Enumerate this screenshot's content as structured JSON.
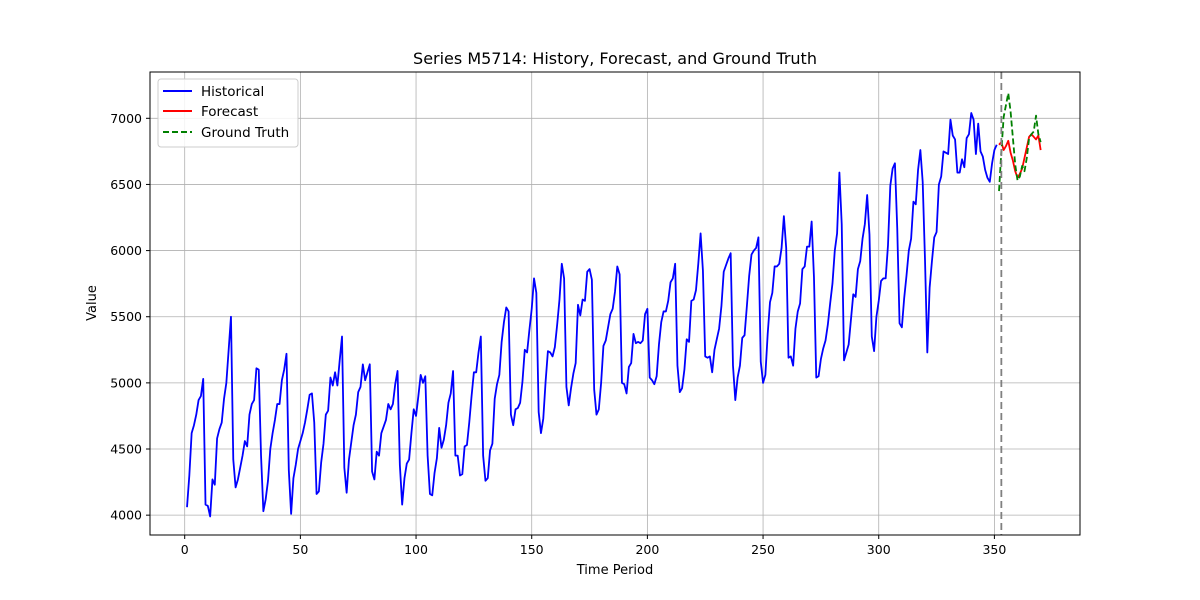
{
  "chart_data": {
    "type": "line",
    "title": "Series M5714: History, Forecast, and Ground Truth",
    "xlabel": "Time Period",
    "ylabel": "Value",
    "xlim": [
      -15,
      387
    ],
    "ylim": [
      3850,
      7350
    ],
    "xticks": [
      0,
      50,
      100,
      150,
      200,
      250,
      300,
      350
    ],
    "yticks": [
      4000,
      4500,
      5000,
      5500,
      6000,
      6500,
      7000
    ],
    "grid": true,
    "legend_position": "top-left",
    "forecast_start_marker": 353,
    "colors": {
      "historical": "#0000ff",
      "forecast": "#ff0000",
      "ground_truth": "#008000",
      "marker": "#808080",
      "grid": "#b0b0b0"
    },
    "series": [
      {
        "name": "Historical",
        "style": "solid",
        "color": "#0000ff",
        "x_start": 1,
        "values": [
          4060,
          4300,
          4620,
          4680,
          4760,
          4870,
          4900,
          5030,
          4080,
          4070,
          3990,
          4270,
          4230,
          4580,
          4650,
          4700,
          4880,
          5000,
          5250,
          5500,
          4420,
          4210,
          4270,
          4360,
          4450,
          4560,
          4520,
          4760,
          4840,
          4870,
          5110,
          5100,
          4450,
          4030,
          4120,
          4260,
          4500,
          4620,
          4720,
          4840,
          4840,
          5020,
          5100,
          5220,
          4340,
          4010,
          4280,
          4380,
          4500,
          4560,
          4620,
          4700,
          4800,
          4910,
          4920,
          4700,
          4160,
          4180,
          4400,
          4540,
          4760,
          4790,
          5040,
          4980,
          5080,
          4980,
          5170,
          5350,
          4360,
          4170,
          4420,
          4550,
          4680,
          4760,
          4930,
          4970,
          5140,
          5020,
          5080,
          5140,
          4330,
          4270,
          4480,
          4450,
          4620,
          4670,
          4720,
          4840,
          4800,
          4840,
          4990,
          5090,
          4380,
          4080,
          4280,
          4390,
          4420,
          4620,
          4800,
          4750,
          4900,
          5060,
          5000,
          5050,
          4450,
          4160,
          4150,
          4320,
          4430,
          4660,
          4510,
          4570,
          4680,
          4850,
          4920,
          5090,
          4450,
          4450,
          4300,
          4310,
          4520,
          4530,
          4700,
          4900,
          5080,
          5080,
          5230,
          5350,
          4450,
          4260,
          4280,
          4490,
          4540,
          4880,
          4990,
          5060,
          5310,
          5460,
          5570,
          5540,
          4760,
          4680,
          4800,
          4810,
          4850,
          5010,
          5250,
          5230,
          5400,
          5560,
          5790,
          5680,
          4780,
          4620,
          4730,
          5010,
          5240,
          5230,
          5200,
          5270,
          5440,
          5630,
          5900,
          5790,
          4970,
          4830,
          4960,
          5070,
          5150,
          5590,
          5510,
          5630,
          5620,
          5840,
          5860,
          5780,
          4950,
          4760,
          4800,
          5000,
          5280,
          5320,
          5420,
          5520,
          5560,
          5690,
          5880,
          5820,
          5000,
          4990,
          4920,
          5120,
          5150,
          5370,
          5300,
          5310,
          5300,
          5320,
          5520,
          5560,
          5040,
          5020,
          4990,
          5050,
          5290,
          5460,
          5540,
          5540,
          5620,
          5760,
          5790,
          5900,
          5130,
          4930,
          4960,
          5100,
          5330,
          5310,
          5620,
          5630,
          5700,
          5900,
          6130,
          5850,
          5200,
          5190,
          5200,
          5080,
          5250,
          5330,
          5410,
          5580,
          5840,
          5890,
          5940,
          5980,
          5130,
          4870,
          5040,
          5130,
          5340,
          5360,
          5580,
          5810,
          5970,
          6000,
          6020,
          6100,
          5160,
          5000,
          5060,
          5370,
          5610,
          5680,
          5880,
          5880,
          5900,
          6020,
          6260,
          6020,
          5190,
          5200,
          5130,
          5410,
          5540,
          5600,
          5860,
          5880,
          6030,
          6030,
          6220,
          5800,
          5040,
          5050,
          5180,
          5260,
          5320,
          5440,
          5600,
          5750,
          6000,
          6130,
          6590,
          6200,
          5170,
          5230,
          5290,
          5480,
          5670,
          5650,
          5860,
          5920,
          6090,
          6200,
          6420,
          6120,
          5350,
          5240,
          5500,
          5620,
          5770,
          5790,
          5790,
          6040,
          6490,
          6620,
          6660,
          6170,
          5450,
          5420,
          5640,
          5810,
          6000,
          6090,
          6370,
          6350,
          6610,
          6760,
          6520,
          5930,
          5230,
          5720,
          5920,
          6100,
          6140,
          6500,
          6560,
          6750,
          6740,
          6730,
          6990,
          6870,
          6840,
          6590,
          6590,
          6690,
          6630,
          6850,
          6880,
          7040,
          6990,
          6730,
          6960,
          6750,
          6710,
          6610,
          6550,
          6520,
          6660,
          6760,
          6800
        ]
      },
      {
        "name": "Forecast",
        "style": "solid",
        "color": "#ff0000",
        "x": [
          352,
          353,
          354,
          355,
          356,
          357,
          358,
          359,
          360,
          361,
          362,
          363,
          364,
          365,
          366,
          367,
          368,
          369,
          370
        ],
        "values": [
          6800,
          6820,
          6760,
          6790,
          6830,
          6740,
          6680,
          6600,
          6550,
          6580,
          6620,
          6700,
          6780,
          6860,
          6880,
          6860,
          6840,
          6870,
          6760
        ]
      },
      {
        "name": "Ground Truth",
        "style": "dashed",
        "color": "#008000",
        "x": [
          352,
          353,
          354,
          355,
          356,
          357,
          358,
          359,
          360,
          361,
          362,
          363,
          364,
          365,
          366,
          367,
          368,
          369,
          370
        ],
        "values": [
          6450,
          6750,
          7010,
          7100,
          7190,
          7050,
          6850,
          6650,
          6530,
          6560,
          6640,
          6600,
          6700,
          6850,
          6880,
          6900,
          7020,
          6880,
          6820
        ]
      }
    ]
  }
}
